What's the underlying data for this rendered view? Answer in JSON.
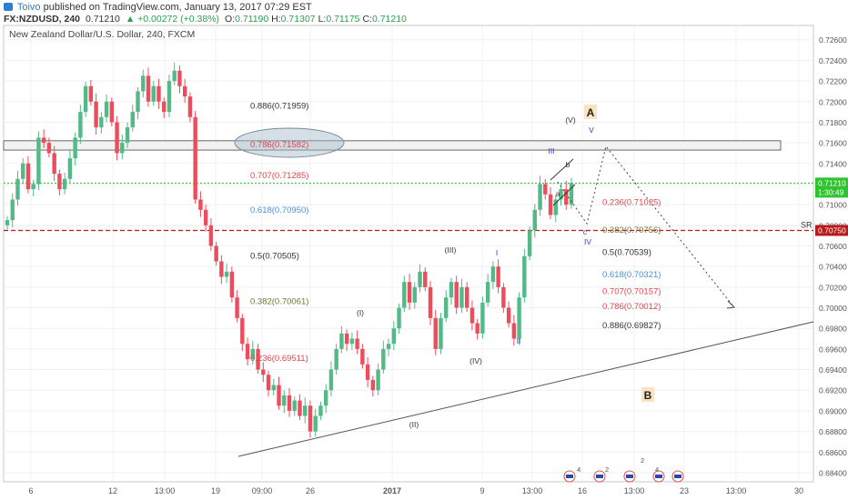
{
  "header": {
    "author": "Toivo",
    "published_text": "published on TradingView.com, January 13, 2017 07:29 EST",
    "symbol": "FX:NZDUSD, 240",
    "last": "0.71210",
    "change": "▲ +0.00272 (+0.38%)",
    "o_label": "O:",
    "o": "0.71190",
    "h_label": "H:",
    "h": "0.71307",
    "l_label": "L:",
    "l": "0.71175",
    "c_label": "C:",
    "c": "0.71210"
  },
  "pane_title": "New Zealand Dollar/U.S. Dollar, 240, FXCM",
  "colors": {
    "up": "#53b987",
    "down": "#eb4d5c",
    "fib_red": "#e0474b",
    "fib_blue": "#4a90d9",
    "fib_olive": "#6b7a34",
    "fib_dark": "#333333",
    "green_line": "#2fc42f",
    "red_line": "#b71c1c",
    "wave_blue": "#3a3ac0"
  },
  "chart_data": {
    "type": "candlestick",
    "y_ticks": [
      "0.72600",
      "0.72400",
      "0.72200",
      "0.72000",
      "0.71800",
      "0.71600",
      "0.71400",
      "0.71200",
      "0.71000",
      "0.70800",
      "0.70600",
      "0.70400",
      "0.70200",
      "0.70000",
      "0.69800",
      "0.69600",
      "0.69400",
      "0.69200",
      "0.69000",
      "0.68800",
      "0.68600",
      "0.68400"
    ],
    "y_range": [
      0.6832,
      0.7273
    ],
    "x_ticks": [
      "6",
      "12",
      "13:00",
      "19",
      "09:00",
      "26",
      "2017",
      "9",
      "13:00",
      "16",
      "13:00",
      "23",
      "13:00",
      "30"
    ],
    "price_badges": [
      {
        "value": "0.71210",
        "sub": "1:30:49",
        "price": 0.7121,
        "color": "#2fc42f"
      },
      {
        "value": "0.70750",
        "price": 0.7075,
        "color": "#b71c1c"
      }
    ],
    "series_close": [
      0.7085,
      0.7105,
      0.7125,
      0.714,
      0.7115,
      0.712,
      0.7165,
      0.716,
      0.715,
      0.713,
      0.7115,
      0.7125,
      0.7145,
      0.7165,
      0.719,
      0.7215,
      0.72,
      0.7175,
      0.7185,
      0.72,
      0.718,
      0.715,
      0.716,
      0.7175,
      0.719,
      0.721,
      0.7225,
      0.72,
      0.7215,
      0.72,
      0.719,
      0.722,
      0.723,
      0.7215,
      0.7205,
      0.7185,
      0.7105,
      0.7095,
      0.708,
      0.706,
      0.7045,
      0.703,
      0.7035,
      0.701,
      0.699,
      0.6965,
      0.695,
      0.696,
      0.694,
      0.6935,
      0.692,
      0.6925,
      0.6905,
      0.6915,
      0.69,
      0.691,
      0.6895,
      0.6905,
      0.688,
      0.6895,
      0.6905,
      0.692,
      0.694,
      0.696,
      0.6975,
      0.6965,
      0.697,
      0.696,
      0.6945,
      0.693,
      0.692,
      0.694,
      0.696,
      0.6965,
      0.698,
      0.7,
      0.7025,
      0.7005,
      0.702,
      0.7035,
      0.702,
      0.699,
      0.696,
      0.699,
      0.701,
      0.7025,
      0.7,
      0.702,
      0.7,
      0.6985,
      0.6975,
      0.7005,
      0.7025,
      0.704,
      0.702,
      0.7,
      0.6985,
      0.697,
      0.701,
      0.705,
      0.7075,
      0.7095,
      0.712,
      0.711,
      0.709,
      0.7105,
      0.7115,
      0.71,
      0.7121
    ],
    "fib_left": [
      {
        "ratio": "0.886",
        "price_label": "(0.71959)",
        "price": 0.71959,
        "color": "#333333"
      },
      {
        "ratio": "0.786",
        "price_label": "(0.71582)",
        "price": 0.71582,
        "color": "#e0474b"
      },
      {
        "ratio": "0.707",
        "price_label": "(0.71285)",
        "price": 0.71285,
        "color": "#e0474b"
      },
      {
        "ratio": "0.618",
        "price_label": "(0.70950)",
        "price": 0.7095,
        "color": "#4a90d9"
      },
      {
        "ratio": "0.5",
        "price_label": "(0.70505)",
        "price": 0.70505,
        "color": "#333333"
      },
      {
        "ratio": "0.382",
        "price_label": "(0.70061)",
        "price": 0.70061,
        "color": "#6b7a34"
      },
      {
        "ratio": "0.236",
        "price_label": "(0.69511)",
        "price": 0.69511,
        "color": "#e0474b"
      }
    ],
    "fib_right": [
      {
        "ratio": "0.236",
        "price_label": "(0.71025)",
        "price": 0.71025,
        "color": "#e0474b"
      },
      {
        "ratio": "0.382",
        "price_label": "(0.70756)",
        "price": 0.70756,
        "color": "#6b7a34"
      },
      {
        "ratio": "0.5",
        "price_label": "(0.70539)",
        "price": 0.70539,
        "color": "#333333"
      },
      {
        "ratio": "0.618",
        "price_label": "(0.70321)",
        "price": 0.70321,
        "color": "#4a90d9"
      },
      {
        "ratio": "0.707",
        "price_label": "(0.70157)",
        "price": 0.70157,
        "color": "#e0474b"
      },
      {
        "ratio": "0.786",
        "price_label": "(0.70012)",
        "price": 0.70012,
        "color": "#e0474b"
      },
      {
        "ratio": "0.886",
        "price_label": "(0.69827)",
        "price": 0.69827,
        "color": "#333333"
      }
    ],
    "wave_labels": [
      "(I)",
      "(II)",
      "(III)",
      "(IV)",
      "(V)",
      "I",
      "II",
      "III",
      "IV",
      "V",
      "a",
      "b",
      "c"
    ],
    "big_labels": [
      "A",
      "B"
    ],
    "sr_label": "SR",
    "zone_price_range": [
      0.7153,
      0.7162
    ],
    "events_count": [
      "4",
      "2",
      "2",
      "4"
    ]
  }
}
